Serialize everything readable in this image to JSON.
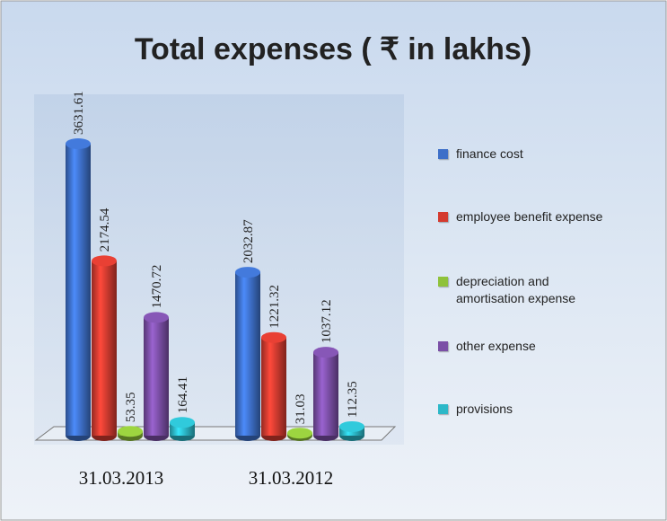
{
  "chart_data": {
    "type": "bar",
    "title": "Total expenses ( ₹ in lakhs)",
    "categories": [
      "31.03.2013",
      "31.03.2012"
    ],
    "series": [
      {
        "name": "finance cost",
        "color": "#3d6fc8",
        "values": [
          3631.61,
          2032.87
        ]
      },
      {
        "name": "employee benefit expense",
        "color": "#d43a2f",
        "values": [
          2174.54,
          1221.32
        ]
      },
      {
        "name": "depreciation and amortisation expense",
        "color": "#8fc23a",
        "values": [
          53.35,
          31.03
        ]
      },
      {
        "name": "other expense",
        "color": "#7b4fa6",
        "values": [
          1470.72,
          1037.12
        ]
      },
      {
        "name": "provisions",
        "color": "#2cb8c8",
        "values": [
          164.41,
          112.35
        ]
      }
    ],
    "legend": "right"
  }
}
